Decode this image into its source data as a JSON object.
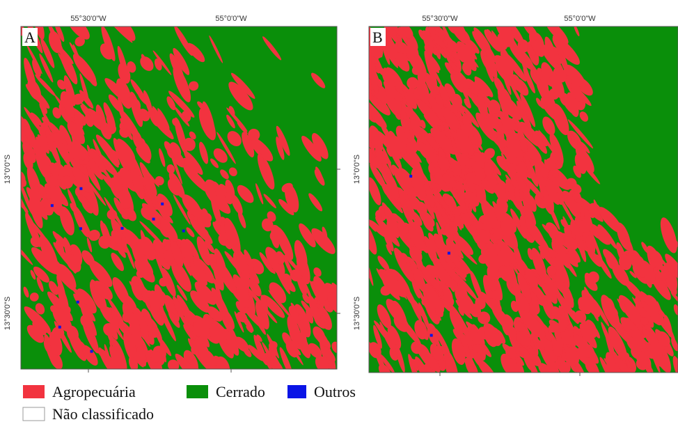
{
  "panels": [
    {
      "label": "A",
      "top_labels": [
        "55°30'0\"W",
        "55°0'0\"W"
      ],
      "left_labels": [
        "13°0'0\"S",
        "13°30'0\"S"
      ]
    },
    {
      "label": "B",
      "top_labels": [
        "55°30'0\"W",
        "55°0'0\"W"
      ],
      "left_labels": [
        "13°0'0\"S",
        "13°30'0\"S"
      ]
    }
  ],
  "legend": [
    {
      "label": "Agropecuária",
      "color": "#f2333f"
    },
    {
      "label": "Cerrado",
      "color": "#0a8f0a"
    },
    {
      "label": "Outros",
      "color": "#0a14e6"
    },
    {
      "label": "Não classificado",
      "color": "#ffffff"
    }
  ]
}
